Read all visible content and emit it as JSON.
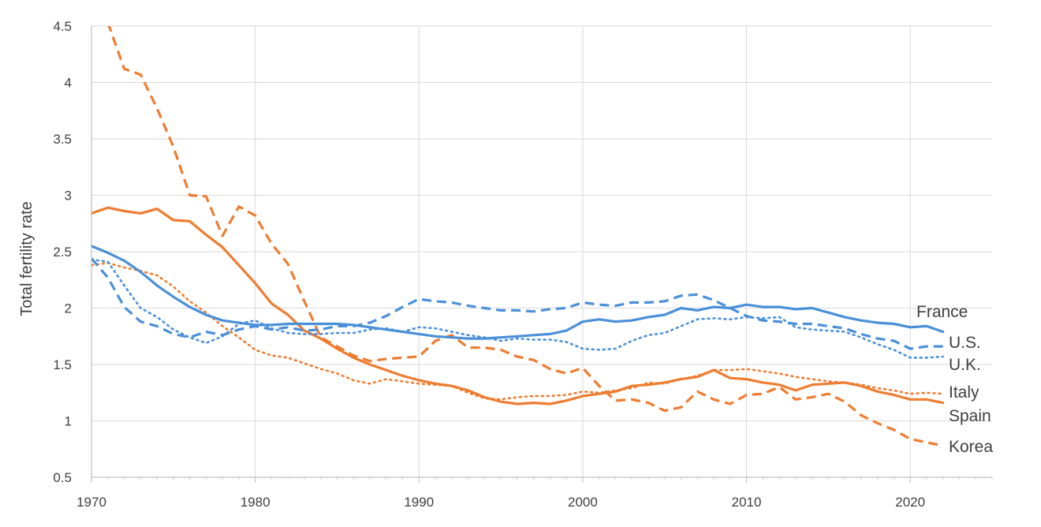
{
  "chart_data": {
    "type": "line",
    "title": "",
    "xlabel": "",
    "ylabel": "Total fertility rate",
    "xlim": [
      1970,
      2025
    ],
    "ylim": [
      0.5,
      4.5
    ],
    "x_ticks": [
      "1970",
      "1980",
      "1990",
      "2000",
      "2010",
      "2020"
    ],
    "y_ticks": [
      "0.5",
      "1",
      "1.5",
      "2",
      "2.5",
      "3",
      "3.5",
      "4",
      "4.5"
    ],
    "grid": true,
    "legend": "direct labels at line ends (right)",
    "colors": {
      "blue": "#4A90D9",
      "orange": "#EE7D31",
      "grid": "#D9D9D9"
    },
    "series": [
      {
        "name": "France",
        "color": "#4A90D9",
        "style": "solid",
        "x": [
          1970,
          1971,
          1972,
          1973,
          1974,
          1975,
          1976,
          1977,
          1978,
          1979,
          1980,
          1981,
          1982,
          1983,
          1984,
          1985,
          1986,
          1987,
          1988,
          1989,
          1990,
          1991,
          1992,
          1993,
          1994,
          1995,
          1996,
          1997,
          1998,
          1999,
          2000,
          2001,
          2002,
          2003,
          2004,
          2005,
          2006,
          2007,
          2008,
          2009,
          2010,
          2011,
          2012,
          2013,
          2014,
          2015,
          2016,
          2017,
          2018,
          2019,
          2020,
          2021,
          2022
        ],
        "y": [
          2.55,
          2.49,
          2.42,
          2.32,
          2.2,
          2.1,
          2.01,
          1.94,
          1.89,
          1.87,
          1.85,
          1.85,
          1.86,
          1.86,
          1.86,
          1.86,
          1.85,
          1.83,
          1.81,
          1.79,
          1.77,
          1.75,
          1.74,
          1.73,
          1.73,
          1.74,
          1.75,
          1.76,
          1.77,
          1.8,
          1.88,
          1.9,
          1.88,
          1.89,
          1.92,
          1.94,
          2.0,
          1.98,
          2.01,
          2.0,
          2.03,
          2.01,
          2.01,
          1.99,
          2.0,
          1.96,
          1.92,
          1.89,
          1.87,
          1.86,
          1.83,
          1.84,
          1.79
        ]
      },
      {
        "name": "U.S.",
        "color": "#4A90D9",
        "style": "dashed",
        "x": [
          1970,
          1971,
          1972,
          1973,
          1974,
          1975,
          1976,
          1977,
          1978,
          1979,
          1980,
          1981,
          1982,
          1983,
          1984,
          1985,
          1986,
          1987,
          1988,
          1989,
          1990,
          1991,
          1992,
          1993,
          1994,
          1995,
          1996,
          1997,
          1998,
          1999,
          2000,
          2001,
          2002,
          2003,
          2004,
          2005,
          2006,
          2007,
          2008,
          2009,
          2010,
          2011,
          2012,
          2013,
          2014,
          2015,
          2016,
          2017,
          2018,
          2019,
          2020,
          2021,
          2022
        ],
        "y": [
          2.44,
          2.27,
          2.01,
          1.88,
          1.84,
          1.77,
          1.74,
          1.79,
          1.76,
          1.81,
          1.84,
          1.81,
          1.83,
          1.8,
          1.81,
          1.84,
          1.84,
          1.87,
          1.93,
          2.01,
          2.08,
          2.06,
          2.05,
          2.02,
          2.0,
          1.98,
          1.98,
          1.97,
          1.99,
          2.0,
          2.05,
          2.03,
          2.02,
          2.05,
          2.05,
          2.06,
          2.11,
          2.12,
          2.07,
          2.0,
          1.93,
          1.89,
          1.88,
          1.86,
          1.86,
          1.84,
          1.82,
          1.77,
          1.73,
          1.71,
          1.64,
          1.66,
          1.66
        ]
      },
      {
        "name": "U.K.",
        "color": "#4A90D9",
        "style": "dotted",
        "x": [
          1970,
          1971,
          1972,
          1973,
          1974,
          1975,
          1976,
          1977,
          1978,
          1979,
          1980,
          1981,
          1982,
          1983,
          1984,
          1985,
          1986,
          1987,
          1988,
          1989,
          1990,
          1991,
          1992,
          1993,
          1994,
          1995,
          1996,
          1997,
          1998,
          1999,
          2000,
          2001,
          2002,
          2003,
          2004,
          2005,
          2006,
          2007,
          2008,
          2009,
          2010,
          2011,
          2012,
          2013,
          2014,
          2015,
          2016,
          2017,
          2018,
          2019,
          2020,
          2021,
          2022
        ],
        "y": [
          2.43,
          2.41,
          2.2,
          2.0,
          1.92,
          1.81,
          1.74,
          1.69,
          1.75,
          1.86,
          1.89,
          1.82,
          1.78,
          1.77,
          1.77,
          1.78,
          1.78,
          1.81,
          1.82,
          1.79,
          1.83,
          1.82,
          1.79,
          1.76,
          1.74,
          1.71,
          1.73,
          1.72,
          1.72,
          1.7,
          1.64,
          1.63,
          1.64,
          1.71,
          1.76,
          1.78,
          1.84,
          1.9,
          1.91,
          1.9,
          1.92,
          1.91,
          1.92,
          1.83,
          1.81,
          1.8,
          1.79,
          1.74,
          1.68,
          1.63,
          1.56,
          1.56,
          1.57
        ]
      },
      {
        "name": "Italy",
        "color": "#EE7D31",
        "style": "dotted",
        "x": [
          1970,
          1971,
          1972,
          1973,
          1974,
          1975,
          1976,
          1977,
          1978,
          1979,
          1980,
          1981,
          1982,
          1983,
          1984,
          1985,
          1986,
          1987,
          1988,
          1989,
          1990,
          1991,
          1992,
          1993,
          1994,
          1995,
          1996,
          1997,
          1998,
          1999,
          2000,
          2001,
          2002,
          2003,
          2004,
          2005,
          2006,
          2007,
          2008,
          2009,
          2010,
          2011,
          2012,
          2013,
          2014,
          2015,
          2016,
          2017,
          2018,
          2019,
          2020,
          2021,
          2022
        ],
        "y": [
          2.38,
          2.4,
          2.36,
          2.33,
          2.29,
          2.19,
          2.06,
          1.96,
          1.84,
          1.74,
          1.63,
          1.58,
          1.56,
          1.51,
          1.46,
          1.42,
          1.36,
          1.33,
          1.37,
          1.35,
          1.33,
          1.32,
          1.31,
          1.25,
          1.2,
          1.19,
          1.21,
          1.22,
          1.22,
          1.23,
          1.26,
          1.25,
          1.27,
          1.29,
          1.34,
          1.33,
          1.37,
          1.4,
          1.45,
          1.45,
          1.46,
          1.44,
          1.42,
          1.39,
          1.37,
          1.35,
          1.34,
          1.32,
          1.29,
          1.27,
          1.24,
          1.25,
          1.24
        ]
      },
      {
        "name": "Spain",
        "color": "#EE7D31",
        "style": "solid",
        "x": [
          1970,
          1971,
          1972,
          1973,
          1974,
          1975,
          1976,
          1977,
          1978,
          1979,
          1980,
          1981,
          1982,
          1983,
          1984,
          1985,
          1986,
          1987,
          1988,
          1989,
          1990,
          1991,
          1992,
          1993,
          1994,
          1995,
          1996,
          1997,
          1998,
          1999,
          2000,
          2001,
          2002,
          2003,
          2004,
          2005,
          2006,
          2007,
          2008,
          2009,
          2010,
          2011,
          2012,
          2013,
          2014,
          2015,
          2016,
          2017,
          2018,
          2019,
          2020,
          2021,
          2022
        ],
        "y": [
          2.84,
          2.89,
          2.86,
          2.84,
          2.88,
          2.78,
          2.77,
          2.65,
          2.54,
          2.38,
          2.22,
          2.04,
          1.94,
          1.8,
          1.73,
          1.64,
          1.56,
          1.5,
          1.45,
          1.4,
          1.36,
          1.33,
          1.31,
          1.27,
          1.21,
          1.17,
          1.15,
          1.16,
          1.15,
          1.18,
          1.22,
          1.24,
          1.26,
          1.31,
          1.32,
          1.34,
          1.37,
          1.39,
          1.45,
          1.38,
          1.37,
          1.34,
          1.32,
          1.27,
          1.32,
          1.33,
          1.34,
          1.31,
          1.26,
          1.23,
          1.19,
          1.19,
          1.16
        ]
      },
      {
        "name": "Korea",
        "color": "#EE7D31",
        "style": "dashed",
        "x": [
          1971,
          1972,
          1973,
          1974,
          1975,
          1976,
          1977,
          1978,
          1979,
          1980,
          1981,
          1982,
          1983,
          1984,
          1985,
          1986,
          1987,
          1988,
          1989,
          1990,
          1991,
          1992,
          1993,
          1994,
          1995,
          1996,
          1997,
          1998,
          1999,
          2000,
          2001,
          2002,
          2003,
          2004,
          2005,
          2006,
          2007,
          2008,
          2009,
          2010,
          2011,
          2012,
          2013,
          2014,
          2015,
          2016,
          2017,
          2018,
          2019,
          2020,
          2021,
          2022
        ],
        "y": [
          4.53,
          4.12,
          4.07,
          3.77,
          3.43,
          3.0,
          2.99,
          2.64,
          2.9,
          2.82,
          2.57,
          2.39,
          2.06,
          1.74,
          1.66,
          1.58,
          1.53,
          1.55,
          1.56,
          1.57,
          1.71,
          1.76,
          1.65,
          1.65,
          1.63,
          1.57,
          1.54,
          1.46,
          1.42,
          1.47,
          1.31,
          1.18,
          1.19,
          1.16,
          1.09,
          1.12,
          1.26,
          1.19,
          1.15,
          1.23,
          1.24,
          1.3,
          1.19,
          1.21,
          1.24,
          1.17,
          1.05,
          0.98,
          0.92,
          0.84,
          0.81,
          0.78
        ]
      }
    ],
    "line_labels": [
      {
        "text": "France",
        "series": "France"
      },
      {
        "text": "U.S.",
        "series": "U.S."
      },
      {
        "text": "U.K.",
        "series": "U.K."
      },
      {
        "text": "Italy",
        "series": "Italy"
      },
      {
        "text": "Spain",
        "series": "Spain"
      },
      {
        "text": "Korea",
        "series": "Korea"
      }
    ]
  }
}
